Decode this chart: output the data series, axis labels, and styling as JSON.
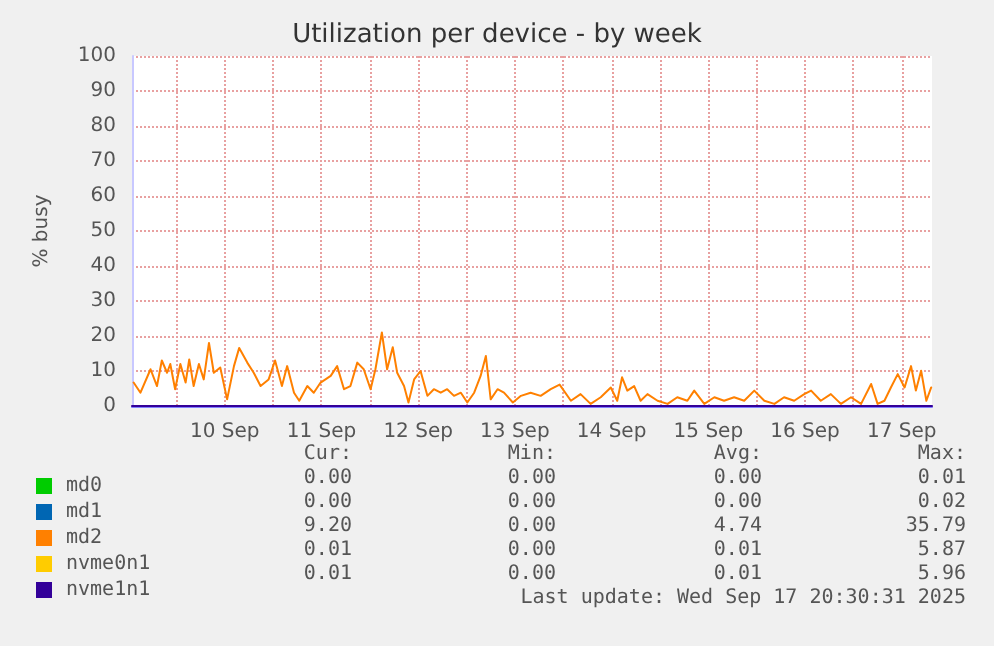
{
  "chart_data": {
    "type": "line",
    "title": "Utilization per device - by week",
    "ylabel": "% busy",
    "xlim": [
      "2025-09-09T13:00",
      "2025-09-17T19:30"
    ],
    "xticks": [
      {
        "value": "2025-09-10T00:00",
        "label": null
      },
      {
        "value": "2025-09-10T12:00",
        "label": "10 Sep"
      },
      {
        "value": "2025-09-11T00:00",
        "label": null
      },
      {
        "value": "2025-09-11T12:00",
        "label": "11 Sep"
      },
      {
        "value": "2025-09-12T00:00",
        "label": null
      },
      {
        "value": "2025-09-12T12:00",
        "label": "12 Sep"
      },
      {
        "value": "2025-09-13T00:00",
        "label": null
      },
      {
        "value": "2025-09-13T12:00",
        "label": "13 Sep"
      },
      {
        "value": "2025-09-14T00:00",
        "label": null
      },
      {
        "value": "2025-09-14T12:00",
        "label": "14 Sep"
      },
      {
        "value": "2025-09-15T00:00",
        "label": null
      },
      {
        "value": "2025-09-15T12:00",
        "label": "15 Sep"
      },
      {
        "value": "2025-09-16T00:00",
        "label": null
      },
      {
        "value": "2025-09-16T12:00",
        "label": "16 Sep"
      },
      {
        "value": "2025-09-17T00:00",
        "label": null
      },
      {
        "value": "2025-09-17T12:00",
        "label": "17 Sep"
      }
    ],
    "ylim": [
      0,
      100
    ],
    "yticks": [
      0,
      10,
      20,
      30,
      40,
      50,
      60,
      70,
      80,
      90,
      100
    ],
    "grid": true,
    "legend": "bottom left",
    "marker": "none",
    "line_style": "solid",
    "series": [
      {
        "name": "md0",
        "color": "#00cc00"
      },
      {
        "name": "md1",
        "color": "#0066b3"
      },
      {
        "name": "md2",
        "color": "#ff8000",
        "x": [
          "2025-09-09T13:24",
          "2025-09-09T15:06",
          "2025-09-09T17:36",
          "2025-09-09T19:12",
          "2025-09-09T20:24",
          "2025-09-09T21:42",
          "2025-09-09T22:30",
          "2025-09-09T23:42",
          "2025-09-10T01:00",
          "2025-09-10T02:18",
          "2025-09-10T03:12",
          "2025-09-10T04:18",
          "2025-09-10T05:36",
          "2025-09-10T06:48",
          "2025-09-10T08:06",
          "2025-09-10T09:18",
          "2025-09-10T10:54",
          "2025-09-10T12:36",
          "2025-09-10T14:18",
          "2025-09-10T15:36",
          "2025-09-10T17:36",
          "2025-09-10T19:12",
          "2025-09-10T20:54",
          "2025-09-10T22:54",
          "2025-09-11T00:30",
          "2025-09-11T02:12",
          "2025-09-11T03:30",
          "2025-09-11T05:12",
          "2025-09-11T06:30",
          "2025-09-11T08:30",
          "2025-09-11T10:06",
          "2025-09-11T11:48",
          "2025-09-11T14:18",
          "2025-09-11T15:54",
          "2025-09-11T17:36",
          "2025-09-11T19:12",
          "2025-09-11T20:54",
          "2025-09-11T22:30",
          "2025-09-12T00:12",
          "2025-09-12T01:24",
          "2025-09-12T03:00",
          "2025-09-12T04:18",
          "2025-09-12T05:42",
          "2025-09-12T06:48",
          "2025-09-12T08:30",
          "2025-09-12T09:36",
          "2025-09-12T11:00",
          "2025-09-12T12:36",
          "2025-09-12T14:18",
          "2025-09-12T15:54",
          "2025-09-12T17:36",
          "2025-09-12T19:12",
          "2025-09-12T20:54",
          "2025-09-12T22:36",
          "2025-09-13T00:12",
          "2025-09-13T01:54",
          "2025-09-13T03:30",
          "2025-09-13T04:48",
          "2025-09-13T06:00",
          "2025-09-13T07:42",
          "2025-09-13T09:18",
          "2025-09-13T11:30",
          "2025-09-13T13:30",
          "2025-09-13T15:54",
          "2025-09-13T18:24",
          "2025-09-13T20:54",
          "2025-09-13T23:06",
          "2025-09-14T01:54",
          "2025-09-14T04:18",
          "2025-09-14T06:48",
          "2025-09-14T09:18",
          "2025-09-14T11:48",
          "2025-09-14T13:24",
          "2025-09-14T14:36",
          "2025-09-14T15:54",
          "2025-09-14T17:36",
          "2025-09-14T19:12",
          "2025-09-14T20:54",
          "2025-09-14T23:24",
          "2025-09-15T01:54",
          "2025-09-15T04:18",
          "2025-09-15T06:48",
          "2025-09-15T08:30",
          "2025-09-15T11:00",
          "2025-09-15T13:30",
          "2025-09-15T15:54",
          "2025-09-15T18:24",
          "2025-09-15T20:54",
          "2025-09-15T23:24",
          "2025-09-16T01:54",
          "2025-09-16T04:24",
          "2025-09-16T06:48",
          "2025-09-16T09:18",
          "2025-09-16T11:48",
          "2025-09-16T13:30",
          "2025-09-16T15:54",
          "2025-09-16T18:24",
          "2025-09-16T20:54",
          "2025-09-16T23:24",
          "2025-09-17T01:54",
          "2025-09-17T04:24",
          "2025-09-17T06:00",
          "2025-09-17T07:42",
          "2025-09-17T09:18",
          "2025-09-17T11:00",
          "2025-09-17T12:42",
          "2025-09-17T14:18",
          "2025-09-17T15:30",
          "2025-09-17T16:48",
          "2025-09-17T18:06",
          "2025-09-17T19:18"
        ],
        "values": [
          6.7,
          3.8,
          10.5,
          5.7,
          13,
          9.5,
          12,
          4.8,
          12,
          6.7,
          13.3,
          5.7,
          12,
          7.6,
          18,
          9.5,
          11,
          1.9,
          11.4,
          16.6,
          12.4,
          9.5,
          5.7,
          7.6,
          13,
          5.7,
          11.4,
          3.8,
          1.5,
          5.7,
          3.8,
          6.7,
          8.6,
          11.4,
          4.8,
          5.7,
          12.4,
          10.5,
          4.8,
          10.5,
          21,
          10.5,
          16.8,
          9.5,
          5.7,
          1,
          7.6,
          10,
          2.9,
          4.8,
          3.8,
          4.8,
          2.9,
          3.8,
          1,
          3.8,
          8.6,
          14.3,
          1.9,
          4.8,
          3.8,
          1,
          2.9,
          3.8,
          2.9,
          4.8,
          6.1,
          1.5,
          3.4,
          0.6,
          2.5,
          5.3,
          1.5,
          8.2,
          4.4,
          5.7,
          1.5,
          3.4,
          1.5,
          0.6,
          2.5,
          1.5,
          4.4,
          0.6,
          2.5,
          1.5,
          2.5,
          1.5,
          4.4,
          1.5,
          0.6,
          2.5,
          1.5,
          3.4,
          4.4,
          1.5,
          3.4,
          0.6,
          2.5,
          0.6,
          6.3,
          0.6,
          1.5,
          5.3,
          9.1,
          5.3,
          11.4,
          4.4,
          10.1,
          1.5,
          5.3
        ]
      },
      {
        "name": "nvme0n1",
        "color": "#ffcc00"
      },
      {
        "name": "nvme1n1",
        "color": "#330099",
        "x": [
          "2025-09-09T13:00",
          "2025-09-17T19:30"
        ],
        "values": [
          0,
          0
        ]
      }
    ],
    "annotations": [
      "Cur:",
      "Min:",
      "Avg:",
      "Max:",
      "0.00",
      "0.00",
      "0.00",
      "0.01",
      "0.00",
      "0.00",
      "0.00",
      "0.02",
      "9.20",
      "0.00",
      "4.74",
      "35.79",
      "0.01",
      "0.00",
      "0.01",
      "5.87",
      "0.01",
      "0.00",
      "0.01",
      "5.96",
      "Last update: Wed Sep 17 20:30:31 2025"
    ]
  }
}
